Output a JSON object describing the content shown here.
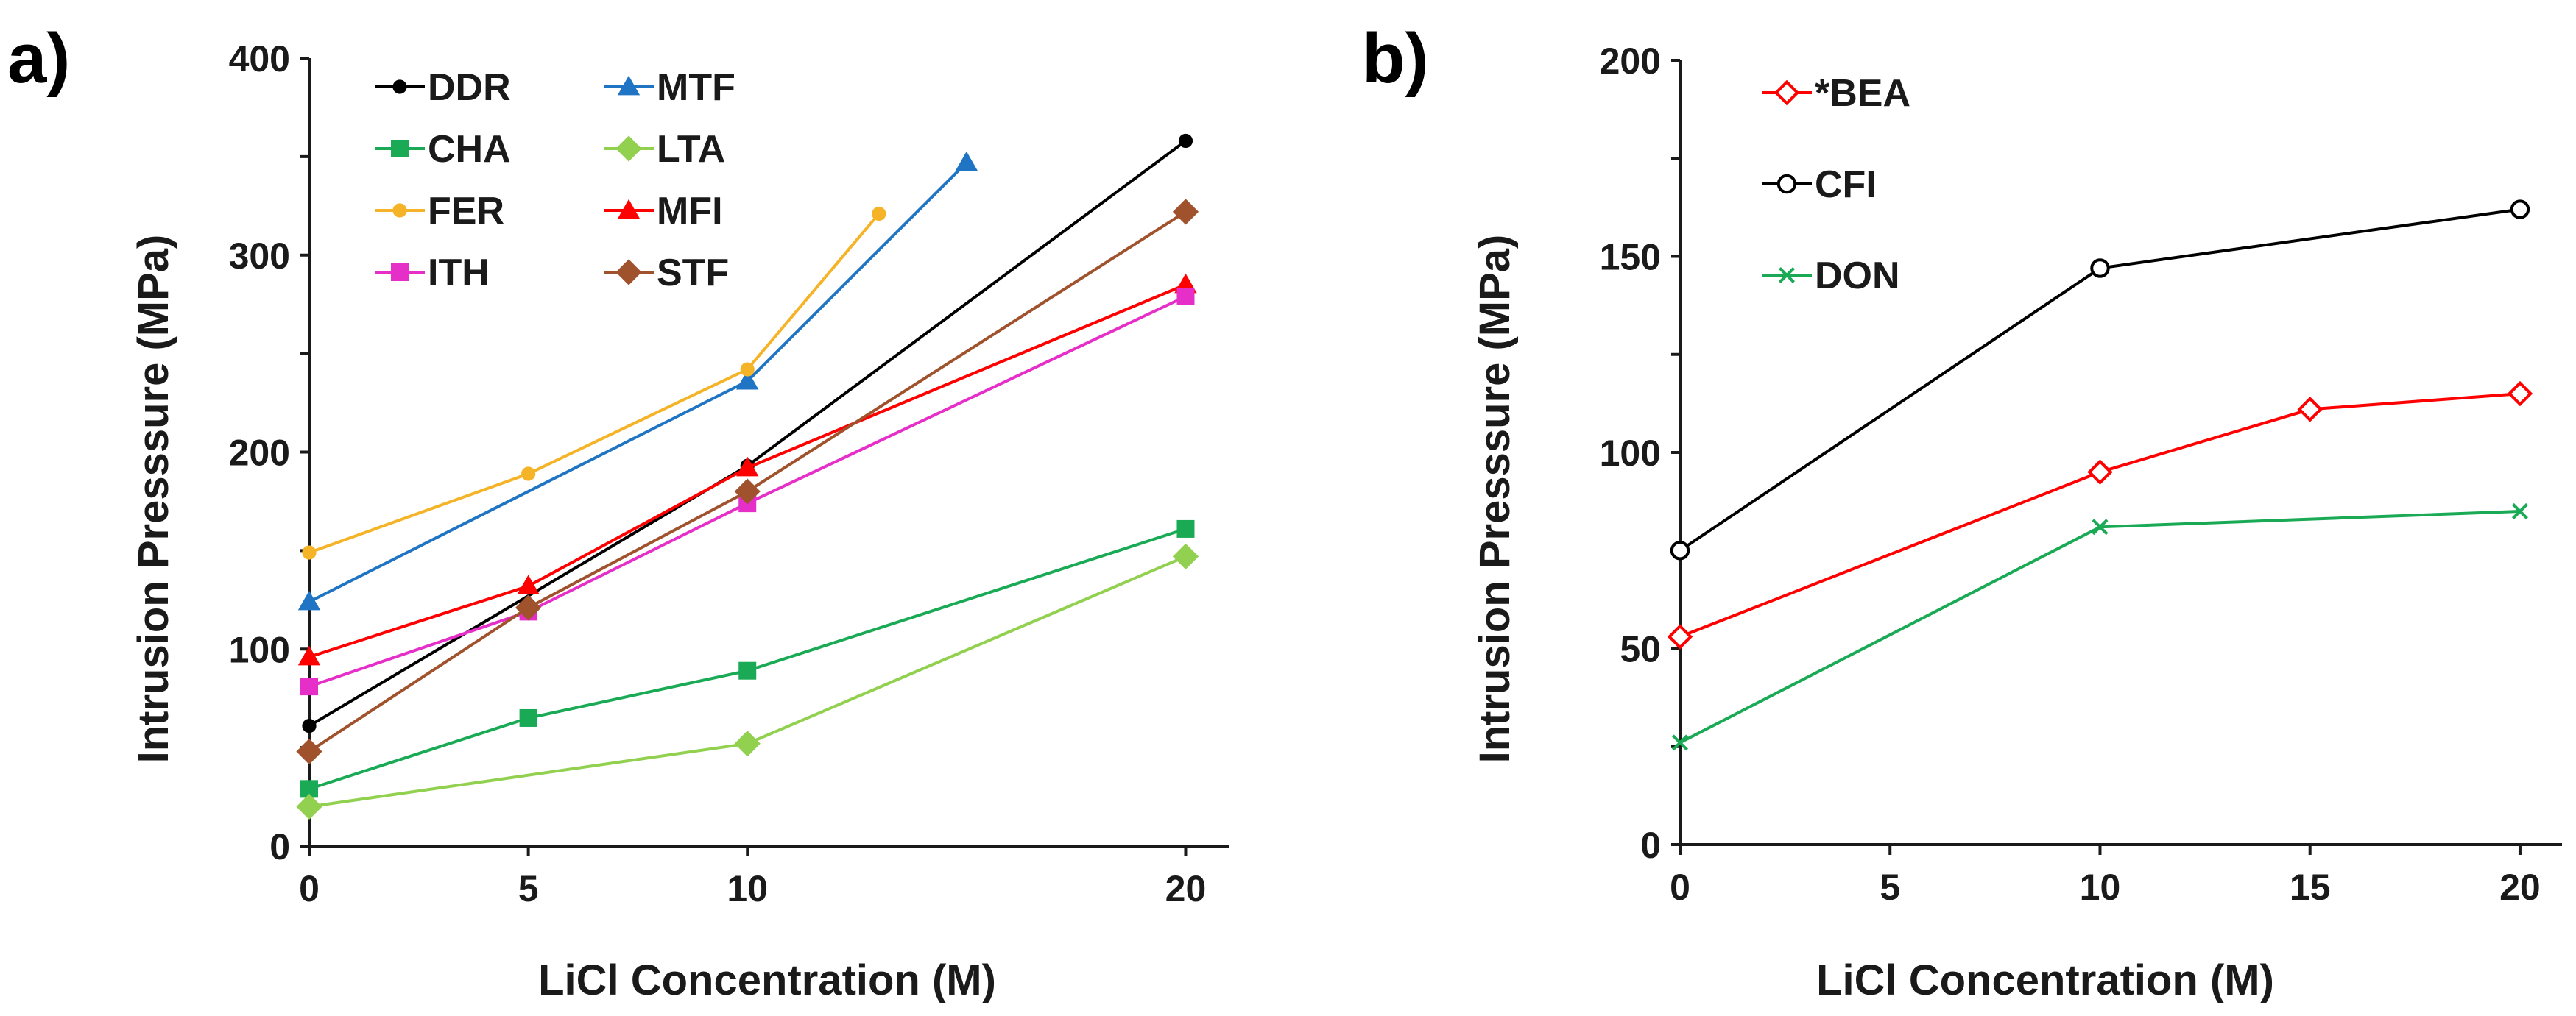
{
  "panels": [
    {
      "label": "a)"
    },
    {
      "label": "b)"
    }
  ],
  "chart_data": [
    {
      "type": "line",
      "panel": "a)",
      "xlabel": "LiCl Concentration (M)",
      "ylabel": "Intrusion Presssure (MPa)",
      "xlim": [
        0,
        21
      ],
      "ylim": [
        0,
        400
      ],
      "xticks": [
        0,
        5,
        10,
        20
      ],
      "yticks": [
        0,
        100,
        200,
        300,
        400
      ],
      "grid": false,
      "legend_position": "top-left",
      "series": [
        {
          "name": "DDR",
          "color": "#000000",
          "marker": "circle",
          "x": [
            0,
            10,
            20
          ],
          "y": [
            61,
            193,
            358
          ]
        },
        {
          "name": "MTF",
          "color": "#1F75C4",
          "marker": "triangle",
          "x": [
            0,
            10,
            15
          ],
          "y": [
            124,
            236,
            347
          ]
        },
        {
          "name": "CHA",
          "color": "#1AAA55",
          "marker": "square",
          "x": [
            0,
            5,
            10,
            20
          ],
          "y": [
            29,
            65,
            89,
            161
          ]
        },
        {
          "name": "LTA",
          "color": "#92D050",
          "marker": "diamond",
          "x": [
            0,
            10,
            20
          ],
          "y": [
            20,
            52,
            147
          ]
        },
        {
          "name": "FER",
          "color": "#F5B428",
          "marker": "circle",
          "x": [
            0,
            5,
            10,
            13
          ],
          "y": [
            149,
            189,
            242,
            321
          ]
        },
        {
          "name": "MFI",
          "color": "#FF0000",
          "marker": "triangle",
          "x": [
            0,
            5,
            10,
            20
          ],
          "y": [
            96,
            132,
            192,
            285
          ]
        },
        {
          "name": "ITH",
          "color": "#E62EC8",
          "marker": "square",
          "x": [
            0,
            5,
            10,
            20
          ],
          "y": [
            81,
            119,
            174,
            279
          ]
        },
        {
          "name": "STF",
          "color": "#A0522D",
          "marker": "diamond",
          "x": [
            0,
            5,
            10,
            20
          ],
          "y": [
            48,
            121,
            180,
            322
          ]
        }
      ]
    },
    {
      "type": "line",
      "panel": "b)",
      "xlabel": "LiCl Concentration (M)",
      "ylabel": "Intrusion Presssure (MPa)",
      "xlim": [
        0,
        21
      ],
      "ylim": [
        0,
        200
      ],
      "xticks": [
        0,
        5,
        10,
        15,
        20
      ],
      "yticks": [
        0,
        50,
        100,
        150,
        200
      ],
      "grid": false,
      "legend_position": "top-left",
      "series": [
        {
          "name": "*BEA",
          "color": "#FF0000",
          "marker": "open-diamond",
          "x": [
            0,
            10,
            15,
            20
          ],
          "y": [
            53,
            95,
            111,
            115
          ]
        },
        {
          "name": "CFI",
          "color": "#000000",
          "marker": "open-circle",
          "x": [
            0,
            10,
            20
          ],
          "y": [
            75,
            147,
            162
          ]
        },
        {
          "name": "DON",
          "color": "#1AAA55",
          "marker": "x",
          "x": [
            0,
            10,
            20
          ],
          "y": [
            26,
            81,
            85
          ]
        }
      ]
    }
  ]
}
